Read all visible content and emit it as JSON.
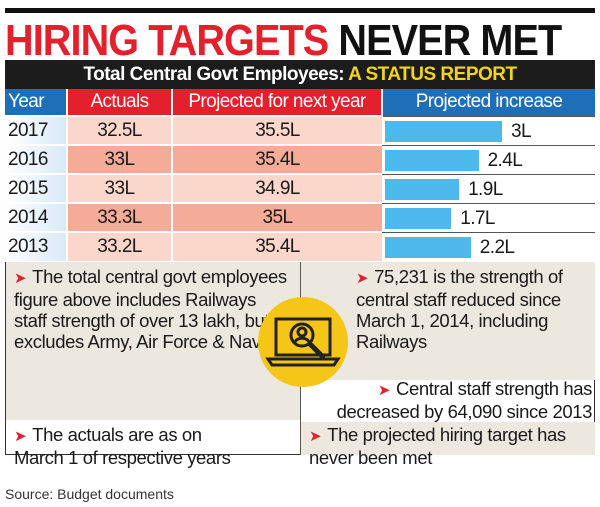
{
  "title": {
    "part1": "HIRING TARGETS",
    "part2": "NEVER MET"
  },
  "banner": {
    "part1": "Total Central Govt Employees:",
    "part2": "A STATUS REPORT"
  },
  "chart_data": {
    "type": "table",
    "columns": [
      "Year",
      "Actuals",
      "Projected for next year",
      "Projected increase"
    ],
    "rows": [
      {
        "year": "2017",
        "actuals": "32.5L",
        "projected": "35.5L",
        "increase": 3,
        "increase_label": "3L"
      },
      {
        "year": "2016",
        "actuals": "33L",
        "projected": "35.4L",
        "increase": 2.4,
        "increase_label": "2.4L"
      },
      {
        "year": "2015",
        "actuals": "33L",
        "projected": "34.9L",
        "increase": 1.9,
        "increase_label": "1.9L"
      },
      {
        "year": "2014",
        "actuals": "33.3L",
        "projected": "35L",
        "increase": 1.7,
        "increase_label": "1.7L"
      },
      {
        "year": "2013",
        "actuals": "33.2L",
        "projected": "35.4L",
        "increase": 2.2,
        "increase_label": "2.2L"
      }
    ],
    "bar_color": "#4db8ec"
  },
  "notes": {
    "left_top": "The total central govt employees figure above includes Railways staff strength of over 13 lakh, but excludes Army, Air Force & Navy",
    "left_bottom": "The actuals are as on March 1 of respective years",
    "right_top": "75,231 is the strength of central staff reduced since March 1, 2014, including Railways",
    "right_middle": "Central staff strength has decreased by 64,090 since 2013",
    "right_bottom": "The projected hiring target has never been met",
    "icon": "laptop-search-user-icon"
  },
  "source": "Source: Budget documents"
}
